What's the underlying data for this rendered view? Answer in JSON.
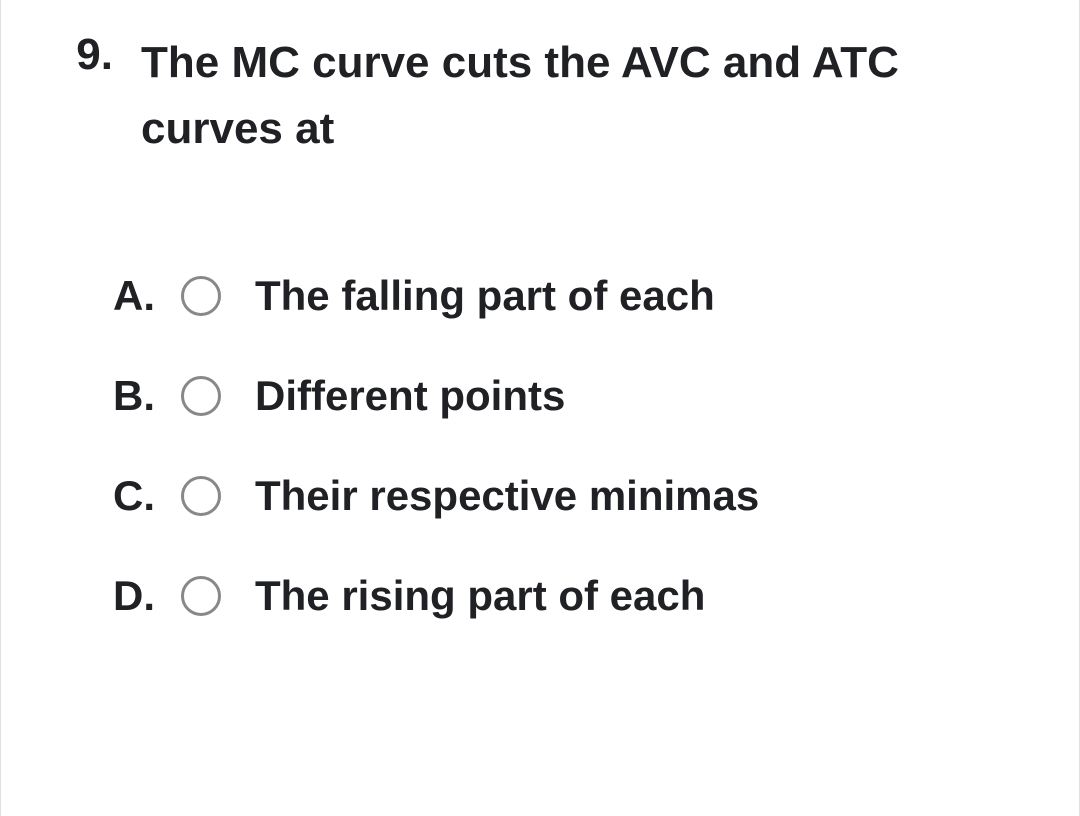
{
  "question": {
    "number": "9.",
    "text": "The MC curve cuts the AVC and ATC curves at"
  },
  "options": [
    {
      "letter": "A.",
      "text": "The falling part of each"
    },
    {
      "letter": "B.",
      "text": "Different points"
    },
    {
      "letter": "C.",
      "text": "Their respective minimas"
    },
    {
      "letter": "D.",
      "text": "The rising part of each"
    }
  ]
}
